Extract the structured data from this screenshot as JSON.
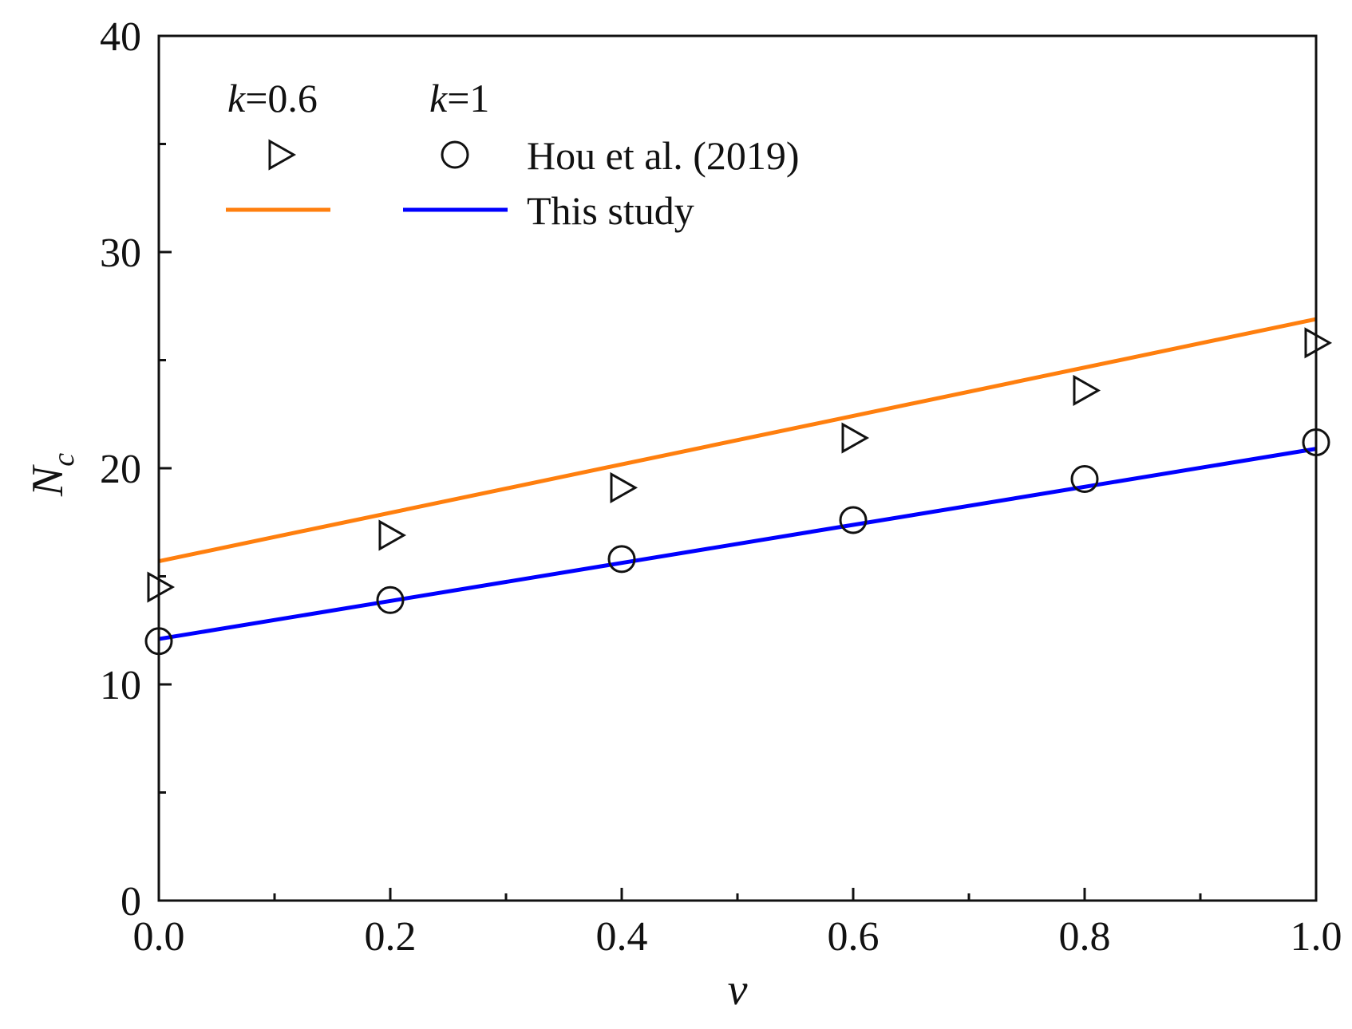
{
  "chart_data": {
    "type": "line",
    "xlabel": "v",
    "ylabel_main": "N",
    "ylabel_sub": "c",
    "xlim": [
      0.0,
      1.0
    ],
    "ylim": [
      0,
      40
    ],
    "x_ticks": [
      0.0,
      0.2,
      0.4,
      0.6,
      0.8,
      1.0
    ],
    "x_tick_labels": [
      "0.0",
      "0.2",
      "0.4",
      "0.6",
      "0.8",
      "1.0"
    ],
    "y_ticks": [
      0,
      10,
      20,
      30,
      40
    ],
    "y_tick_labels": [
      "0",
      "10",
      "20",
      "30",
      "40"
    ],
    "grid": false,
    "legend": {
      "position": "top-left",
      "column_headers": [
        {
          "italic": "k",
          "rest": "=0.6"
        },
        {
          "italic": "k",
          "rest": "=1"
        }
      ],
      "row_labels": [
        "Hou et al. (2019)",
        "This study"
      ]
    },
    "series": [
      {
        "name": "Hou et al. (2019), k=0.6",
        "kind": "scatter",
        "marker": "triangle-right",
        "color": "#111111",
        "x": [
          0.0,
          0.2,
          0.4,
          0.6,
          0.8,
          1.0
        ],
        "y": [
          14.5,
          16.9,
          19.1,
          21.4,
          23.6,
          25.8
        ]
      },
      {
        "name": "Hou et al. (2019), k=1",
        "kind": "scatter",
        "marker": "circle",
        "color": "#111111",
        "x": [
          0.0,
          0.2,
          0.4,
          0.6,
          0.8,
          1.0
        ],
        "y": [
          12.0,
          13.9,
          15.8,
          17.6,
          19.5,
          21.2
        ]
      },
      {
        "name": "This study, k=0.6",
        "kind": "line",
        "color": "#ff7f0e",
        "x": [
          0.0,
          1.0
        ],
        "y": [
          15.7,
          26.9
        ]
      },
      {
        "name": "This study, k=1",
        "kind": "line",
        "color": "#0000ff",
        "x": [
          0.0,
          1.0
        ],
        "y": [
          12.1,
          20.9
        ]
      }
    ]
  }
}
